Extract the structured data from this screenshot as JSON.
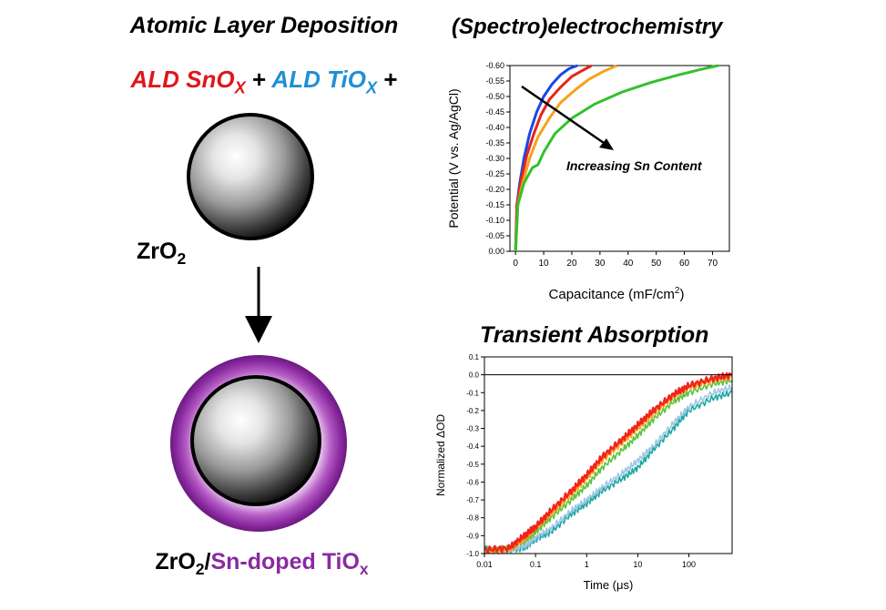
{
  "left_panel": {
    "title": "Atomic Layer Deposition",
    "ald_line": {
      "sno_prefix": "ALD SnO",
      "sno_sub": "X",
      "plus1": "+",
      "tio_prefix": "ALD TiO",
      "tio_sub": "X",
      "plus2": "+"
    },
    "core_label_main": "ZrO",
    "core_label_sub": "2",
    "final_label": {
      "zro": "ZrO",
      "zro_sub": "2",
      "slash": "/",
      "sn_doped": "Sn-doped TiO",
      "sn_sub": "x"
    },
    "colors": {
      "sno": "#e0161b",
      "tio": "#1f8fd6",
      "shell": "#8a2aa0"
    }
  },
  "chart_data": [
    {
      "type": "line",
      "title": "(Spectro)electrochemistry",
      "xlabel_main": "Capacitance (mF/cm",
      "xlabel_sup": "2",
      "xlabel_end": ")",
      "ylabel": "Potential (V vs. Ag/AgCl)",
      "annotation": "Increasing Sn Content",
      "xlim": [
        -2,
        76
      ],
      "ylim": [
        0.0,
        -0.6
      ],
      "x_ticks": [
        0,
        10,
        20,
        30,
        40,
        50,
        60,
        70
      ],
      "x_tick_labels": [
        "0",
        "10",
        "20",
        "30",
        "40",
        "50",
        "60",
        "70"
      ],
      "y_ticks": [
        0.0,
        -0.05,
        -0.1,
        -0.15,
        -0.2,
        -0.25,
        -0.3,
        -0.35,
        -0.4,
        -0.45,
        -0.5,
        -0.55,
        -0.6
      ],
      "y_tick_labels": [
        "0.00",
        "-0.05",
        "-0.10",
        "-0.15",
        "-0.20",
        "-0.25",
        "-0.30",
        "-0.35",
        "-0.40",
        "-0.45",
        "-0.50",
        "-0.55",
        "-0.60"
      ],
      "series": [
        {
          "color": "#1846e8",
          "x": [
            0,
            0.5,
            1.5,
            3,
            5,
            7.5,
            10,
            13,
            16,
            19,
            22
          ],
          "y": [
            0,
            -0.15,
            -0.22,
            -0.3,
            -0.38,
            -0.45,
            -0.5,
            -0.54,
            -0.57,
            -0.59,
            -0.6
          ]
        },
        {
          "color": "#e8231a",
          "x": [
            0,
            0.5,
            2,
            4,
            6.5,
            9,
            12,
            16,
            20,
            24,
            27
          ],
          "y": [
            0,
            -0.15,
            -0.23,
            -0.31,
            -0.38,
            -0.44,
            -0.49,
            -0.53,
            -0.565,
            -0.585,
            -0.6
          ]
        },
        {
          "color": "#f7a21b",
          "x": [
            0,
            0.8,
            2.5,
            5,
            8,
            12,
            16,
            21,
            26,
            31,
            36
          ],
          "y": [
            0,
            -0.15,
            -0.22,
            -0.3,
            -0.37,
            -0.43,
            -0.48,
            -0.52,
            -0.555,
            -0.58,
            -0.6
          ]
        },
        {
          "color": "#33c12c",
          "x": [
            0,
            0.8,
            3,
            6,
            8,
            10,
            14,
            20,
            28,
            38,
            48,
            58,
            67,
            72
          ],
          "y": [
            0,
            -0.15,
            -0.22,
            -0.27,
            -0.28,
            -0.32,
            -0.38,
            -0.43,
            -0.475,
            -0.515,
            -0.545,
            -0.57,
            -0.59,
            -0.6
          ]
        }
      ]
    },
    {
      "type": "line",
      "title": "Transient Absorption",
      "xlabel": "Time (μs)",
      "ylabel": "Normalized ΔOD",
      "x_scale": "log",
      "xlim": [
        0.01,
        700
      ],
      "ylim": [
        -1.0,
        0.1
      ],
      "x_ticks": [
        0.01,
        0.1,
        1,
        10,
        100
      ],
      "x_tick_labels": [
        "0.01",
        "0.1",
        "1",
        "10",
        "100"
      ],
      "y_ticks": [
        0.1,
        0.0,
        -0.1,
        -0.2,
        -0.3,
        -0.4,
        -0.5,
        -0.6,
        -0.7,
        -0.8,
        -0.9,
        -1.0
      ],
      "y_tick_labels": [
        "0.1",
        "0.0",
        "-0.1",
        "-0.2",
        "-0.3",
        "-0.4",
        "-0.5",
        "-0.6",
        "-0.7",
        "-0.8",
        "-0.9",
        "-1.0"
      ],
      "reference_line": 0.0,
      "series": [
        {
          "color": "#1fa7a0",
          "x": [
            0.01,
            0.03,
            0.06,
            0.1,
            0.2,
            0.5,
            1,
            2,
            5,
            10,
            20,
            50,
            100,
            300,
            700
          ],
          "y": [
            -0.97,
            -0.98,
            -0.97,
            -0.92,
            -0.88,
            -0.78,
            -0.72,
            -0.65,
            -0.58,
            -0.52,
            -0.42,
            -0.3,
            -0.2,
            -0.13,
            -0.1
          ]
        },
        {
          "color": "#9fc7e6",
          "x": [
            0.01,
            0.03,
            0.06,
            0.1,
            0.2,
            0.5,
            1,
            2,
            5,
            10,
            20,
            50,
            100,
            300,
            700
          ],
          "y": [
            -0.98,
            -0.98,
            -0.96,
            -0.91,
            -0.86,
            -0.76,
            -0.7,
            -0.63,
            -0.55,
            -0.48,
            -0.4,
            -0.27,
            -0.18,
            -0.1,
            -0.07
          ]
        },
        {
          "color": "#5dc23c",
          "x": [
            0.01,
            0.03,
            0.06,
            0.1,
            0.2,
            0.5,
            1,
            2,
            5,
            10,
            20,
            50,
            100,
            300,
            700
          ],
          "y": [
            -0.98,
            -0.97,
            -0.93,
            -0.88,
            -0.8,
            -0.7,
            -0.62,
            -0.52,
            -0.42,
            -0.34,
            -0.25,
            -0.15,
            -0.1,
            -0.05,
            -0.03
          ]
        },
        {
          "color": "#f7a21b",
          "x": [
            0.01,
            0.03,
            0.06,
            0.1,
            0.2,
            0.5,
            1,
            2,
            5,
            10,
            20,
            50,
            100,
            300,
            700
          ],
          "y": [
            -0.99,
            -0.98,
            -0.92,
            -0.86,
            -0.78,
            -0.67,
            -0.58,
            -0.48,
            -0.38,
            -0.3,
            -0.22,
            -0.12,
            -0.07,
            -0.03,
            -0.01
          ]
        },
        {
          "color": "#f2231c",
          "x": [
            0.01,
            0.03,
            0.06,
            0.1,
            0.2,
            0.5,
            1,
            2,
            5,
            10,
            20,
            50,
            100,
            300,
            700
          ],
          "y": [
            -0.98,
            -0.97,
            -0.9,
            -0.85,
            -0.76,
            -0.65,
            -0.56,
            -0.46,
            -0.36,
            -0.28,
            -0.2,
            -0.11,
            -0.06,
            -0.02,
            0.0
          ]
        }
      ]
    }
  ]
}
